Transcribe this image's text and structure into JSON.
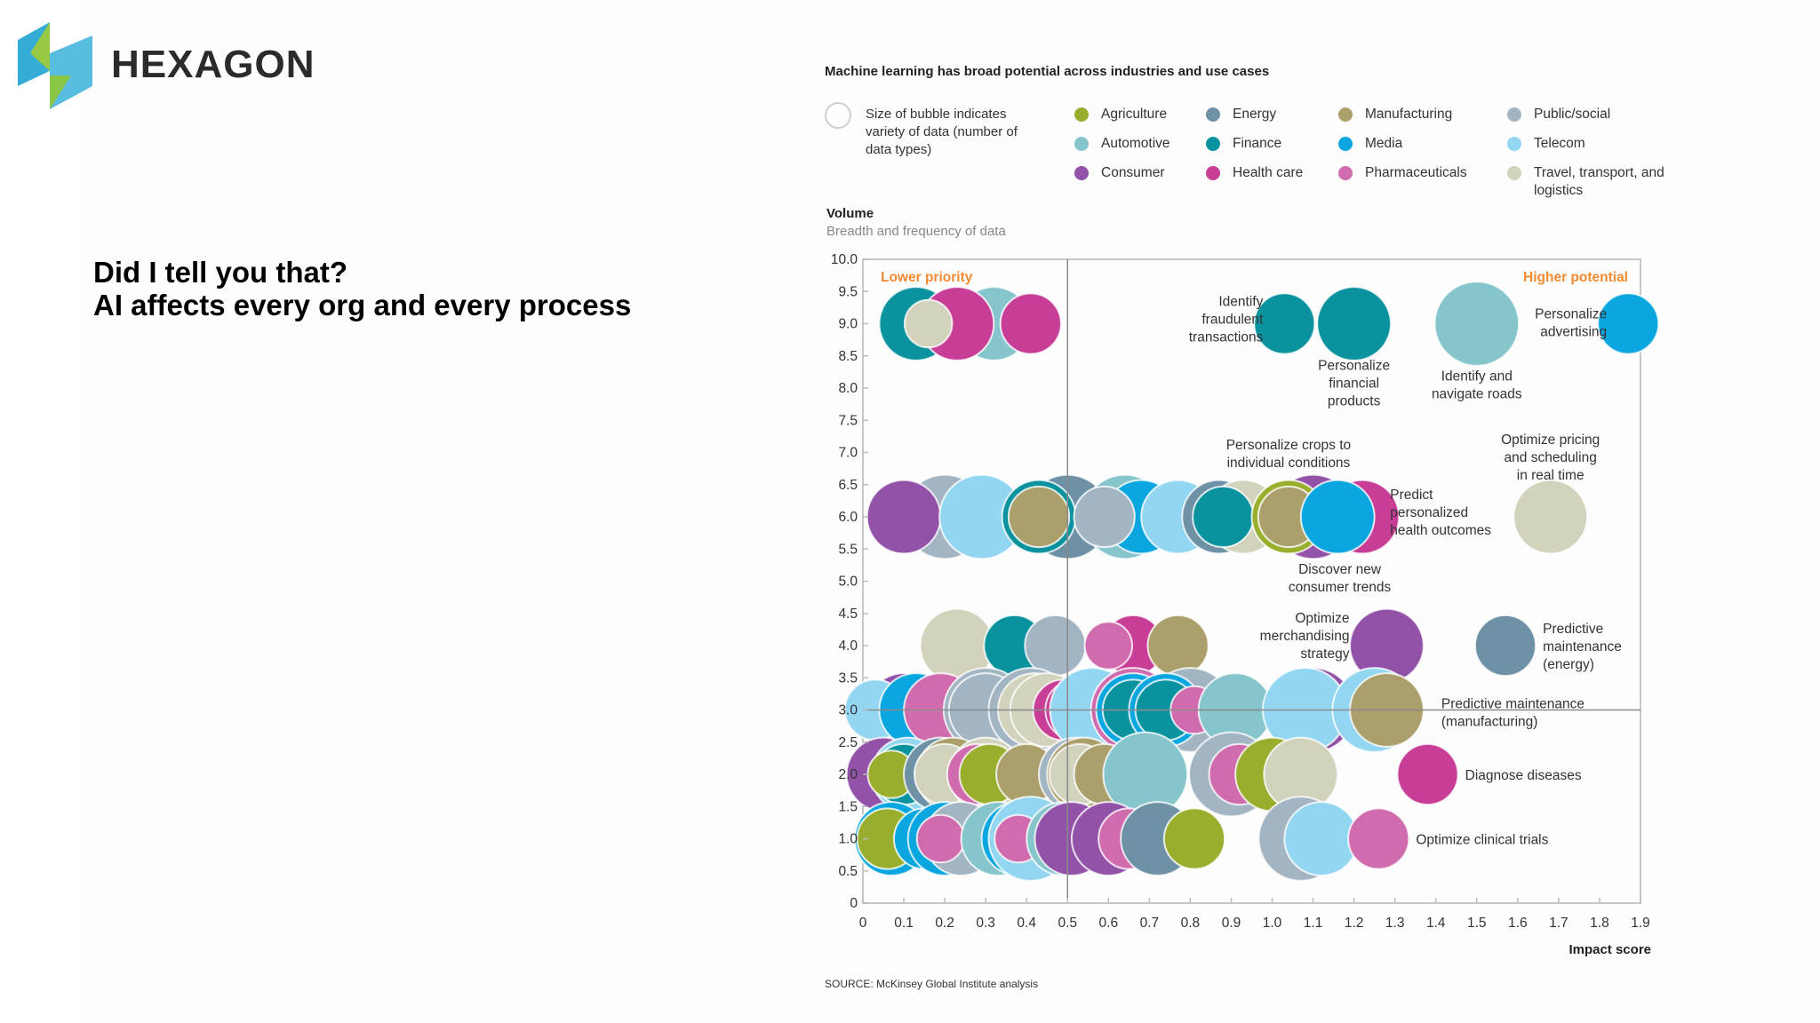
{
  "brand": {
    "name": "HEXAGON"
  },
  "headline": {
    "line1": "Did I tell you that?",
    "line2": "AI affects every org and every process"
  },
  "chart_data": {
    "type": "scatter",
    "subtype": "bubble",
    "title": "Machine learning has broad potential across industries and use cases",
    "size_legend": "Size of bubble indicates variety of data (number of data types)",
    "ylabel": "Volume",
    "ysublabel": "Breadth and frequency of data",
    "xlabel": "Impact score",
    "xlim": [
      0,
      1.9
    ],
    "ylim": [
      0,
      10
    ],
    "xticks": [
      "0",
      "0.1",
      "0.2",
      "0.3",
      "0.4",
      "0.5",
      "0.6",
      "0.7",
      "0.8",
      "0.9",
      "1.0",
      "1.1",
      "1.2",
      "1.3",
      "1.4",
      "1.5",
      "1.6",
      "1.7",
      "1.8",
      "1.9"
    ],
    "yticks": [
      "0",
      "0.5",
      "1.0",
      "1.5",
      "2.0",
      "2.5",
      "3.0",
      "3.5",
      "4.0",
      "4.5",
      "5.0",
      "5.5",
      "6.0",
      "6.5",
      "7.0",
      "7.5",
      "8.0",
      "8.5",
      "9.0",
      "9.5",
      "10.0"
    ],
    "dividers": {
      "x": 0.5,
      "y": 3.0
    },
    "quadrant_labels": {
      "lower_left": "Lower priority",
      "upper_right": "Higher potential"
    },
    "source": "SOURCE: McKinsey Global Institute analysis",
    "legend": [
      {
        "name": "Agriculture",
        "color": "#9aae2e"
      },
      {
        "name": "Automotive",
        "color": "#86c5cc"
      },
      {
        "name": "Consumer",
        "color": "#9152a8"
      },
      {
        "name": "Energy",
        "color": "#6e91a6"
      },
      {
        "name": "Finance",
        "color": "#0a939e"
      },
      {
        "name": "Health care",
        "color": "#c83e96"
      },
      {
        "name": "Manufacturing",
        "color": "#ab9f6c"
      },
      {
        "name": "Media",
        "color": "#0aa6df"
      },
      {
        "name": "Pharmaceuticals",
        "color": "#d06cae"
      },
      {
        "name": "Public/social",
        "color": "#a3b5c2"
      },
      {
        "name": "Telecom",
        "color": "#93d6f2"
      },
      {
        "name": "Travel, transport, and logistics",
        "color": "#d3d3bd"
      }
    ],
    "bubbles": [
      {
        "x": 0.13,
        "y": 9.0,
        "size": 5,
        "industry": "Finance"
      },
      {
        "x": 0.32,
        "y": 9.0,
        "size": 5,
        "industry": "Automotive"
      },
      {
        "x": 0.23,
        "y": 9.0,
        "size": 5,
        "industry": "Health care"
      },
      {
        "x": 0.16,
        "y": 9.0,
        "size": 1.5,
        "industry": "Travel, transport, and logistics"
      },
      {
        "x": 0.41,
        "y": 9.0,
        "size": 3,
        "industry": "Health care"
      },
      {
        "x": 1.03,
        "y": 9.0,
        "size": 3,
        "industry": "Finance",
        "label": "Identify fraudulent transactions"
      },
      {
        "x": 1.2,
        "y": 9.0,
        "size": 5,
        "industry": "Finance",
        "label": "Personalize financial products"
      },
      {
        "x": 1.5,
        "y": 9.0,
        "size": 7,
        "industry": "Automotive",
        "label": "Identify and navigate roads"
      },
      {
        "x": 1.87,
        "y": 9.0,
        "size": 3,
        "industry": "Media",
        "label": "Personalize advertising"
      },
      {
        "x": 0.2,
        "y": 6.0,
        "size": 7,
        "industry": "Public/social"
      },
      {
        "x": 0.1,
        "y": 6.0,
        "size": 5,
        "industry": "Consumer"
      },
      {
        "x": 0.29,
        "y": 6.0,
        "size": 7,
        "industry": "Telecom"
      },
      {
        "x": 0.5,
        "y": 6.0,
        "size": 7,
        "industry": "Energy"
      },
      {
        "x": 0.43,
        "y": 6.0,
        "size": 5,
        "industry": "Finance"
      },
      {
        "x": 0.43,
        "y": 6.0,
        "size": 3,
        "industry": "Manufacturing"
      },
      {
        "x": 0.64,
        "y": 6.0,
        "size": 7,
        "industry": "Automotive"
      },
      {
        "x": 0.68,
        "y": 6.0,
        "size": 5,
        "industry": "Media"
      },
      {
        "x": 0.59,
        "y": 6.0,
        "size": 3,
        "industry": "Public/social"
      },
      {
        "x": 0.77,
        "y": 6.0,
        "size": 5,
        "industry": "Telecom"
      },
      {
        "x": 0.87,
        "y": 6.0,
        "size": 5,
        "industry": "Energy"
      },
      {
        "x": 0.93,
        "y": 6.0,
        "size": 5,
        "industry": "Travel, transport, and logistics"
      },
      {
        "x": 0.88,
        "y": 6.0,
        "size": 3,
        "industry": "Finance"
      },
      {
        "x": 1.1,
        "y": 6.0,
        "size": 7,
        "industry": "Consumer",
        "label": "Discover new consumer trends"
      },
      {
        "x": 1.04,
        "y": 6.0,
        "size": 5,
        "industry": "Agriculture",
        "label": "Personalize crops to individual conditions"
      },
      {
        "x": 1.04,
        "y": 6.0,
        "size": 3,
        "industry": "Manufacturing"
      },
      {
        "x": 1.22,
        "y": 6.0,
        "size": 5,
        "industry": "Health care",
        "label": "Predict personalized health outcomes"
      },
      {
        "x": 1.16,
        "y": 6.0,
        "size": 5,
        "industry": "Media"
      },
      {
        "x": 1.68,
        "y": 6.0,
        "size": 5,
        "industry": "Travel, transport, and logistics",
        "label": "Optimize pricing and scheduling in real time"
      },
      {
        "x": 0.23,
        "y": 4.0,
        "size": 5,
        "industry": "Travel, transport, and logistics"
      },
      {
        "x": 0.37,
        "y": 4.0,
        "size": 3,
        "industry": "Finance"
      },
      {
        "x": 0.47,
        "y": 4.0,
        "size": 3,
        "industry": "Public/social"
      },
      {
        "x": 0.66,
        "y": 4.0,
        "size": 3,
        "industry": "Health care"
      },
      {
        "x": 0.6,
        "y": 4.0,
        "size": 1.5,
        "industry": "Pharmaceuticals"
      },
      {
        "x": 0.77,
        "y": 4.0,
        "size": 3,
        "industry": "Manufacturing"
      },
      {
        "x": 1.28,
        "y": 4.0,
        "size": 5,
        "industry": "Consumer",
        "label": "Optimize merchandising strategy"
      },
      {
        "x": 1.57,
        "y": 4.0,
        "size": 3,
        "industry": "Energy",
        "label": "Predictive maintenance (energy)"
      },
      {
        "x": 0.1,
        "y": 3.0,
        "size": 5,
        "industry": "Consumer"
      },
      {
        "x": 0.03,
        "y": 3.0,
        "size": 3,
        "industry": "Telecom"
      },
      {
        "x": 0.13,
        "y": 3.0,
        "size": 5,
        "industry": "Media"
      },
      {
        "x": 0.19,
        "y": 3.0,
        "size": 5,
        "industry": "Pharmaceuticals"
      },
      {
        "x": 0.3,
        "y": 3.0,
        "size": 7,
        "industry": "Public/social"
      },
      {
        "x": 0.3,
        "y": 3.0,
        "size": 5,
        "industry": "Public/social"
      },
      {
        "x": 0.41,
        "y": 3.0,
        "size": 7,
        "industry": "Public/social"
      },
      {
        "x": 0.42,
        "y": 3.0,
        "size": 5,
        "industry": "Travel, transport, and logistics"
      },
      {
        "x": 0.45,
        "y": 3.0,
        "size": 5,
        "industry": "Travel, transport, and logistics"
      },
      {
        "x": 0.49,
        "y": 3.0,
        "size": 3,
        "industry": "Health care"
      },
      {
        "x": 0.52,
        "y": 3.0,
        "size": 3,
        "industry": "Health care"
      },
      {
        "x": 0.56,
        "y": 3.0,
        "size": 7,
        "industry": "Telecom"
      },
      {
        "x": 0.66,
        "y": 3.0,
        "size": 7,
        "industry": "Pharmaceuticals"
      },
      {
        "x": 0.8,
        "y": 3.0,
        "size": 7,
        "industry": "Public/social"
      },
      {
        "x": 0.66,
        "y": 3.0,
        "size": 5,
        "industry": "Media"
      },
      {
        "x": 0.66,
        "y": 3.0,
        "size": 3,
        "industry": "Finance"
      },
      {
        "x": 0.74,
        "y": 3.0,
        "size": 5,
        "industry": "Media"
      },
      {
        "x": 0.74,
        "y": 3.0,
        "size": 3,
        "industry": "Finance"
      },
      {
        "x": 0.81,
        "y": 3.0,
        "size": 1.5,
        "industry": "Pharmaceuticals"
      },
      {
        "x": 0.91,
        "y": 3.0,
        "size": 5,
        "industry": "Automotive"
      },
      {
        "x": 1.1,
        "y": 3.0,
        "size": 7,
        "industry": "Consumer"
      },
      {
        "x": 1.08,
        "y": 3.0,
        "size": 7,
        "industry": "Telecom"
      },
      {
        "x": 1.25,
        "y": 3.0,
        "size": 7,
        "industry": "Telecom"
      },
      {
        "x": 1.28,
        "y": 3.0,
        "size": 5,
        "industry": "Manufacturing",
        "label": "Predictive maintenance (manufacturing)"
      },
      {
        "x": 0.05,
        "y": 2.0,
        "size": 5,
        "industry": "Consumer"
      },
      {
        "x": 0.11,
        "y": 2.0,
        "size": 5,
        "industry": "Telecom"
      },
      {
        "x": 0.1,
        "y": 2.0,
        "size": 3,
        "industry": "Finance"
      },
      {
        "x": 0.07,
        "y": 2.0,
        "size": 1.5,
        "industry": "Agriculture"
      },
      {
        "x": 0.19,
        "y": 2.0,
        "size": 5,
        "industry": "Energy"
      },
      {
        "x": 0.22,
        "y": 2.0,
        "size": 5,
        "industry": "Manufacturing"
      },
      {
        "x": 0.2,
        "y": 2.0,
        "size": 3,
        "industry": "Travel, transport, and logistics"
      },
      {
        "x": 0.3,
        "y": 2.0,
        "size": 5,
        "industry": "Travel, transport, and logistics"
      },
      {
        "x": 0.28,
        "y": 2.0,
        "size": 3,
        "industry": "Pharmaceuticals"
      },
      {
        "x": 0.31,
        "y": 2.0,
        "size": 3,
        "industry": "Agriculture"
      },
      {
        "x": 0.4,
        "y": 2.0,
        "size": 3,
        "industry": "Manufacturing"
      },
      {
        "x": 0.52,
        "y": 2.0,
        "size": 5,
        "industry": "Public/social"
      },
      {
        "x": 0.54,
        "y": 2.0,
        "size": 5,
        "industry": "Manufacturing"
      },
      {
        "x": 0.53,
        "y": 2.0,
        "size": 3,
        "industry": "Travel, transport, and logistics"
      },
      {
        "x": 0.59,
        "y": 2.0,
        "size": 3,
        "industry": "Manufacturing"
      },
      {
        "x": 0.69,
        "y": 2.0,
        "size": 7,
        "industry": "Automotive"
      },
      {
        "x": 0.9,
        "y": 2.0,
        "size": 7,
        "industry": "Public/social"
      },
      {
        "x": 0.92,
        "y": 2.0,
        "size": 3,
        "industry": "Pharmaceuticals"
      },
      {
        "x": 1.0,
        "y": 2.0,
        "size": 5,
        "industry": "Agriculture"
      },
      {
        "x": 1.07,
        "y": 2.0,
        "size": 5,
        "industry": "Travel, transport, and logistics"
      },
      {
        "x": 1.38,
        "y": 2.0,
        "size": 3,
        "industry": "Health care",
        "label": "Diagnose diseases"
      },
      {
        "x": 0.07,
        "y": 1.0,
        "size": 5,
        "industry": "Media"
      },
      {
        "x": 0.06,
        "y": 1.0,
        "size": 3,
        "industry": "Agriculture"
      },
      {
        "x": 0.15,
        "y": 1.0,
        "size": 3,
        "industry": "Media"
      },
      {
        "x": 0.2,
        "y": 1.0,
        "size": 5,
        "industry": "Media"
      },
      {
        "x": 0.24,
        "y": 1.0,
        "size": 5,
        "industry": "Public/social"
      },
      {
        "x": 0.19,
        "y": 1.0,
        "size": 1.5,
        "industry": "Pharmaceuticals"
      },
      {
        "x": 0.33,
        "y": 1.0,
        "size": 5,
        "industry": "Automotive"
      },
      {
        "x": 0.38,
        "y": 1.0,
        "size": 5,
        "industry": "Media"
      },
      {
        "x": 0.41,
        "y": 1.0,
        "size": 7,
        "industry": "Telecom"
      },
      {
        "x": 0.38,
        "y": 1.0,
        "size": 1.5,
        "industry": "Pharmaceuticals"
      },
      {
        "x": 0.49,
        "y": 1.0,
        "size": 5,
        "industry": "Automotive"
      },
      {
        "x": 0.51,
        "y": 1.0,
        "size": 5,
        "industry": "Consumer"
      },
      {
        "x": 0.6,
        "y": 1.0,
        "size": 5,
        "industry": "Consumer"
      },
      {
        "x": 0.65,
        "y": 1.0,
        "size": 3,
        "industry": "Pharmaceuticals"
      },
      {
        "x": 0.74,
        "y": 1.0,
        "size": 3,
        "industry": "Agriculture"
      },
      {
        "x": 0.72,
        "y": 1.0,
        "size": 5,
        "industry": "Energy"
      },
      {
        "x": 0.81,
        "y": 1.0,
        "size": 3,
        "industry": "Agriculture"
      },
      {
        "x": 1.07,
        "y": 1.0,
        "size": 7,
        "industry": "Public/social"
      },
      {
        "x": 1.12,
        "y": 1.0,
        "size": 5,
        "industry": "Telecom"
      },
      {
        "x": 1.26,
        "y": 1.0,
        "size": 3,
        "industry": "Pharmaceuticals",
        "label": "Optimize clinical trials"
      }
    ]
  }
}
